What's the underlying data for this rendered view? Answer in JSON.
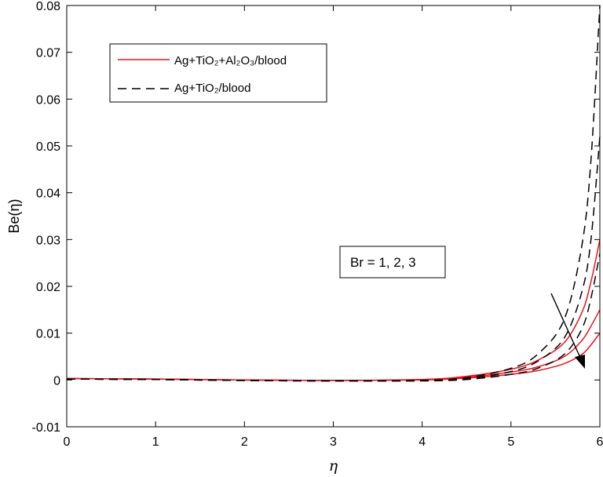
{
  "chart_data": {
    "type": "line",
    "xlabel": "η",
    "ylabel": "Be(η)",
    "xlim": [
      0,
      6
    ],
    "ylim": [
      -0.01,
      0.08
    ],
    "xticks": [
      "0",
      "1",
      "2",
      "3",
      "4",
      "5",
      "6"
    ],
    "yticks": [
      "-0.01",
      "0",
      "0.01",
      "0.02",
      "0.03",
      "0.04",
      "0.05",
      "0.06",
      "0.07",
      "0.08"
    ],
    "legend": {
      "placement": "top-left",
      "entries": [
        {
          "label": "Ag+TiO₂+Al₂O₃/blood",
          "color": "#e8141b",
          "dash": "solid"
        },
        {
          "label": "Ag+TiO₂/blood",
          "color": "#000000",
          "dash": "dashed"
        }
      ]
    },
    "annotation": {
      "text": "Br = 1, 2, 3",
      "arrow": "points toward increasing Br"
    },
    "series": [
      {
        "group": "Ag+TiO₂+Al₂O₃/blood",
        "color": "#e8141b",
        "dash": "solid",
        "x": [
          0,
          1,
          2,
          3,
          4,
          4.5,
          5,
          5.3,
          5.6,
          5.8,
          5.9,
          6.0
        ],
        "y": [
          0.0003,
          0.0002,
          0.0,
          -0.0001,
          0.0,
          0.0004,
          0.0012,
          0.002,
          0.0035,
          0.0055,
          0.0075,
          0.01
        ]
      },
      {
        "group": "Ag+TiO₂+Al₂O₃/blood",
        "color": "#e8141b",
        "dash": "solid",
        "x": [
          0,
          1,
          2,
          3,
          4,
          4.5,
          5,
          5.3,
          5.6,
          5.8,
          5.9,
          6.0
        ],
        "y": [
          0.0003,
          0.0002,
          0.0,
          -0.0001,
          0.0001,
          0.0006,
          0.0017,
          0.0028,
          0.005,
          0.0085,
          0.0115,
          0.015
        ]
      },
      {
        "group": "Ag+TiO₂+Al₂O₃/blood",
        "color": "#e8141b",
        "dash": "solid",
        "x": [
          0,
          1,
          2,
          3,
          4,
          4.5,
          5,
          5.3,
          5.6,
          5.8,
          5.9,
          6.0
        ],
        "y": [
          0.0003,
          0.0002,
          0.0,
          -0.0001,
          0.0001,
          0.0008,
          0.0023,
          0.0042,
          0.008,
          0.0145,
          0.021,
          0.03
        ]
      },
      {
        "group": "Ag+TiO₂/blood",
        "color": "#000000",
        "dash": "dashed",
        "x": [
          0,
          1,
          2,
          3,
          4,
          4.5,
          5,
          5.3,
          5.6,
          5.8,
          5.9,
          6.0
        ],
        "y": [
          0.0002,
          0.0001,
          -0.0001,
          -0.0002,
          -0.0002,
          0.0001,
          0.0012,
          0.0025,
          0.0055,
          0.011,
          0.0175,
          0.027
        ]
      },
      {
        "group": "Ag+TiO₂/blood",
        "color": "#000000",
        "dash": "dashed",
        "x": [
          0,
          1,
          2,
          3,
          4,
          4.5,
          5,
          5.3,
          5.6,
          5.8,
          5.9,
          6.0
        ],
        "y": [
          0.0002,
          0.0001,
          -0.0001,
          -0.0002,
          -0.0001,
          0.0003,
          0.0018,
          0.004,
          0.009,
          0.019,
          0.03,
          0.052
        ]
      },
      {
        "group": "Ag+TiO₂/blood",
        "color": "#000000",
        "dash": "dashed",
        "x": [
          0,
          1,
          2,
          3,
          4,
          4.5,
          5,
          5.3,
          5.6,
          5.8,
          5.9,
          6.0
        ],
        "y": [
          0.0002,
          0.0001,
          -0.0001,
          -0.0002,
          -0.0001,
          0.0005,
          0.0025,
          0.0055,
          0.013,
          0.029,
          0.047,
          0.08
        ]
      }
    ]
  }
}
